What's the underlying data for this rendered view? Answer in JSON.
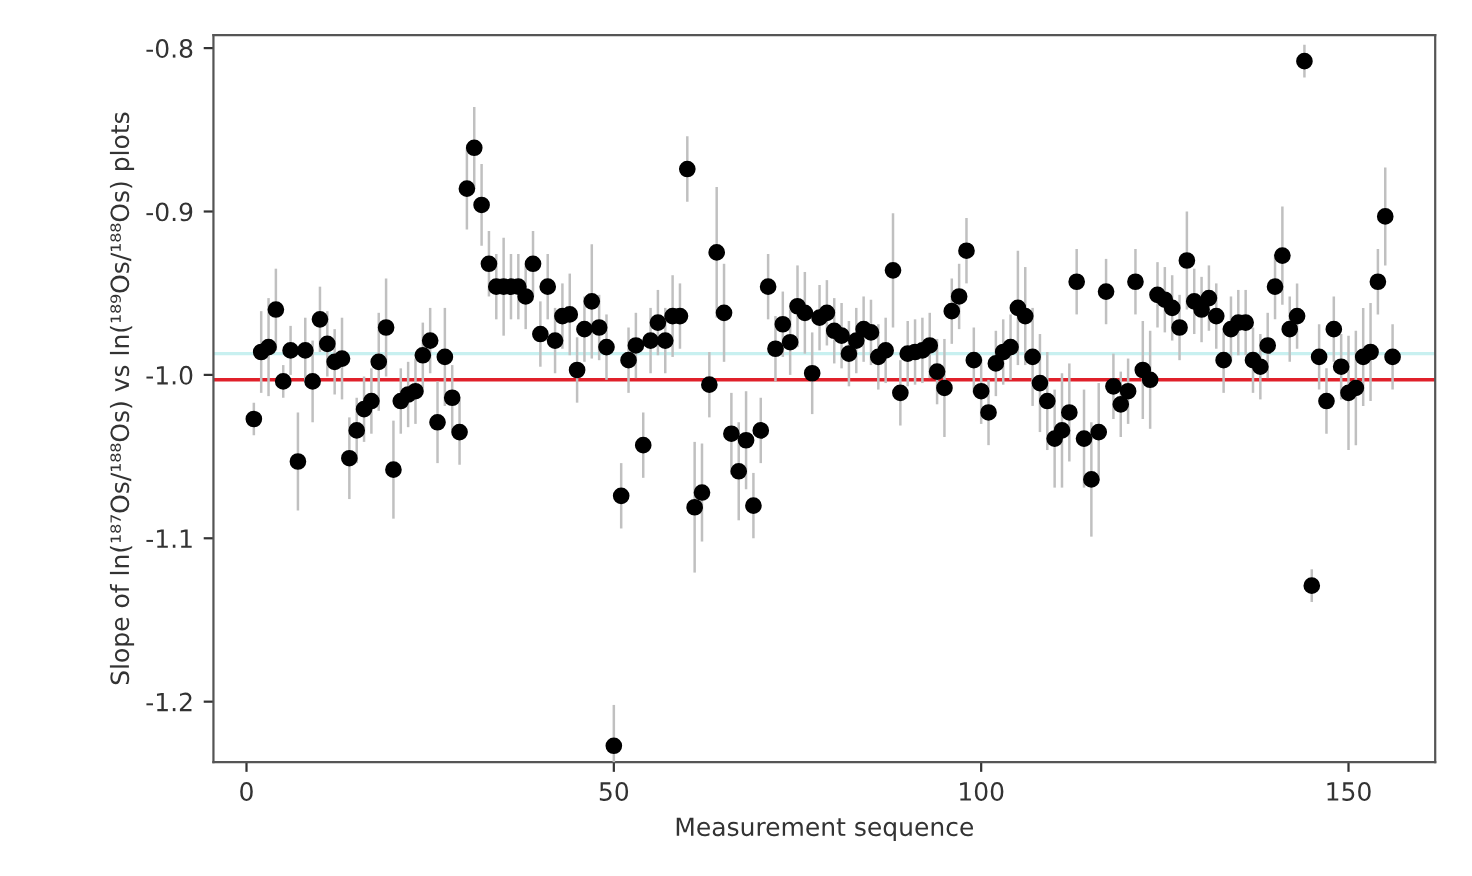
{
  "chart_data": {
    "type": "scatter",
    "xlabel": "Measurement sequence",
    "ylabel": "Slope of ln(¹⁸⁷Os/¹⁸⁸Os) vs ln(¹⁸⁹Os/¹⁸⁸Os) plots",
    "x": [
      1,
      2,
      3,
      4,
      5,
      6,
      7,
      8,
      9,
      10,
      11,
      12,
      13,
      14,
      15,
      16,
      17,
      18,
      19,
      20,
      21,
      22,
      23,
      24,
      25,
      26,
      27,
      28,
      29,
      30,
      31,
      32,
      33,
      34,
      35,
      36,
      37,
      38,
      39,
      40,
      41,
      42,
      43,
      44,
      45,
      46,
      47,
      48,
      49,
      50,
      51,
      52,
      53,
      54,
      55,
      56,
      57,
      58,
      59,
      60,
      61,
      62,
      63,
      64,
      65,
      66,
      67,
      68,
      69,
      70,
      71,
      72,
      73,
      74,
      75,
      76,
      77,
      78,
      79,
      80,
      81,
      82,
      83,
      84,
      85,
      86,
      87,
      88,
      89,
      90,
      91,
      92,
      93,
      94,
      95,
      96,
      97,
      98,
      99,
      100,
      101,
      102,
      103,
      104,
      105,
      106,
      107,
      108,
      109,
      110,
      111,
      112,
      113,
      114,
      115,
      116,
      117,
      118,
      119,
      120,
      121,
      122,
      123,
      124,
      125,
      126,
      127,
      128,
      129,
      130,
      131,
      132,
      133,
      134,
      135,
      136,
      137,
      138,
      139,
      140,
      141,
      142,
      143,
      144,
      145,
      146,
      147,
      148,
      149,
      150,
      151,
      152,
      153,
      154,
      155,
      156
    ],
    "series": [
      {
        "color": "#000000",
        "values": [
          -1.027,
          -0.986,
          -0.983,
          -0.96,
          -1.004,
          -0.985,
          -1.053,
          -0.985,
          -1.004,
          -0.966,
          -0.981,
          -0.992,
          -0.99,
          -1.051,
          -1.034,
          -1.021,
          -1.016,
          -0.992,
          -0.971,
          -1.058,
          -1.016,
          -1.012,
          -1.01,
          -0.988,
          -0.979,
          -1.029,
          -0.989,
          -1.014,
          -1.035,
          -0.886,
          -0.861,
          -0.896,
          -0.932,
          -0.946,
          -0.946,
          -0.946,
          -0.946,
          -0.952,
          -0.932,
          -0.975,
          -0.946,
          -0.979,
          -0.964,
          -0.963,
          -0.997,
          -0.972,
          -0.955,
          -0.971,
          -0.983,
          -1.227,
          -1.074,
          -0.991,
          -0.982,
          -1.043,
          -0.979,
          -0.968,
          -0.979,
          -0.964,
          -0.964,
          -0.874,
          -1.081,
          -1.072,
          -1.006,
          -0.925,
          -0.962,
          -1.036,
          -1.059,
          -1.04,
          -1.08,
          -1.034,
          -0.946,
          -0.984,
          -0.969,
          -0.98,
          -0.958,
          -0.962,
          -0.999,
          -0.965,
          -0.962,
          -0.973,
          -0.976,
          -0.987,
          -0.979,
          -0.972,
          -0.974,
          -0.989,
          -0.985,
          -0.936,
          -1.011,
          -0.987,
          -0.986,
          -0.985,
          -0.982,
          -0.998,
          -1.008,
          -0.961,
          -0.952,
          -0.924,
          -0.991,
          -1.01,
          -1.023,
          -0.993,
          -0.986,
          -0.983,
          -0.959,
          -0.964,
          -0.989,
          -1.005,
          -1.016,
          -1.039,
          -1.034,
          -1.023,
          -0.943,
          -1.039,
          -1.064,
          -1.035,
          -0.949,
          -1.007,
          -1.018,
          -1.01,
          -0.943,
          -0.997,
          -1.003,
          -0.951,
          -0.954,
          -0.959,
          -0.971,
          -0.93,
          -0.955,
          -0.96,
          -0.953,
          -0.964,
          -0.991,
          -0.972,
          -0.968,
          -0.968,
          -0.991,
          -0.995,
          -0.982,
          -0.946,
          -0.927,
          -0.972,
          -0.964,
          -0.808,
          -1.129,
          -0.989,
          -1.016,
          -0.972,
          -0.995,
          -1.011,
          -1.008,
          -0.989,
          -0.986,
          -0.943,
          -0.903,
          -0.989
        ],
        "errors": [
          0.01,
          0.025,
          0.03,
          0.025,
          0.01,
          0.015,
          0.03,
          0.02,
          0.025,
          0.02,
          0.02,
          0.02,
          0.025,
          0.025,
          0.02,
          0.02,
          0.02,
          0.03,
          0.03,
          0.03,
          0.02,
          0.02,
          0.02,
          0.02,
          0.02,
          0.025,
          0.03,
          0.02,
          0.02,
          0.025,
          0.025,
          0.025,
          0.02,
          0.02,
          0.03,
          0.02,
          0.02,
          0.02,
          0.02,
          0.02,
          0.02,
          0.02,
          0.02,
          0.025,
          0.02,
          0.02,
          0.035,
          0.02,
          0.02,
          0.025,
          0.02,
          0.02,
          0.02,
          0.02,
          0.02,
          0.02,
          0.02,
          0.025,
          0.02,
          0.02,
          0.04,
          0.03,
          0.02,
          0.04,
          0.03,
          0.025,
          0.03,
          0.03,
          0.02,
          0.02,
          0.02,
          0.02,
          0.02,
          0.02,
          0.025,
          0.025,
          0.025,
          0.02,
          0.02,
          0.02,
          0.02,
          0.02,
          0.02,
          0.02,
          0.02,
          0.02,
          0.02,
          0.035,
          0.02,
          0.02,
          0.02,
          0.02,
          0.02,
          0.02,
          0.03,
          0.02,
          0.02,
          0.02,
          0.02,
          0.02,
          0.02,
          0.02,
          0.02,
          0.02,
          0.035,
          0.03,
          0.03,
          0.03,
          0.03,
          0.03,
          0.035,
          0.03,
          0.02,
          0.03,
          0.035,
          0.03,
          0.02,
          0.02,
          0.02,
          0.02,
          0.02,
          0.03,
          0.03,
          0.02,
          0.02,
          0.02,
          0.02,
          0.03,
          0.02,
          0.02,
          0.02,
          0.02,
          0.02,
          0.02,
          0.02,
          0.02,
          0.02,
          0.02,
          0.02,
          0.02,
          0.03,
          0.02,
          0.02,
          0.01,
          0.01,
          0.02,
          0.02,
          0.02,
          0.02,
          0.035,
          0.035,
          0.03,
          0.03,
          0.02,
          0.03,
          0.02
        ]
      }
    ],
    "marker": "circle",
    "xlim": [
      -4.5,
      161.8
    ],
    "ylim": [
      -1.237,
      -0.792
    ],
    "xticks": [
      0,
      50,
      100,
      150
    ],
    "yticks": [
      -0.8,
      -0.9,
      {
        "value": -1,
        "label": "-1.0"
      },
      -1.1,
      -1.2
    ],
    "ref_lines": [
      {
        "axis": "y",
        "value": -0.987,
        "color": "#c8f0f0"
      },
      {
        "axis": "y",
        "value": -1.003,
        "color": "#e0202a"
      }
    ],
    "grid": false,
    "legend": false
  }
}
